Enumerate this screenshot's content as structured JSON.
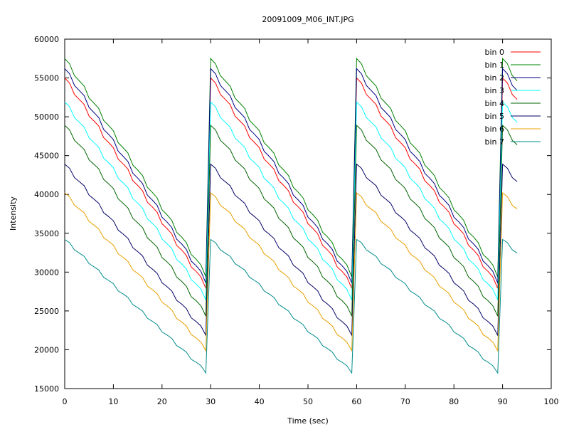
{
  "chart_data": {
    "type": "line",
    "title": "20091009_M06_INT.JPG",
    "xlabel": "Time (sec)",
    "ylabel": "Intensity",
    "xlim": [
      0,
      100
    ],
    "ylim": [
      15000,
      60000
    ],
    "xticks": [
      0,
      10,
      20,
      30,
      40,
      50,
      60,
      70,
      80,
      90,
      100
    ],
    "yticks": [
      15000,
      20000,
      25000,
      30000,
      35000,
      40000,
      45000,
      50000,
      55000,
      60000
    ],
    "grid": false,
    "legend_position": "top-right",
    "x_period": 30,
    "x_end": 93.2,
    "sample_step_sec": 1,
    "series": [
      {
        "name": "bin 0",
        "color": "#ff0000",
        "cycle_start": 55000,
        "cycle_end": 28200
      },
      {
        "name": "bin 1",
        "color": "#008000",
        "cycle_start": 57500,
        "cycle_end": 29700
      },
      {
        "name": "bin 2",
        "color": "#000080",
        "cycle_start": 56200,
        "cycle_end": 28900
      },
      {
        "name": "bin 3",
        "color": "#00ffff",
        "cycle_start": 51900,
        "cycle_end": 26700
      },
      {
        "name": "bin 4",
        "color": "#006400",
        "cycle_start": 48900,
        "cycle_end": 24600
      },
      {
        "name": "bin 5",
        "color": "#000066",
        "cycle_start": 43900,
        "cycle_end": 22100
      },
      {
        "name": "bin 6",
        "color": "#e8a000",
        "cycle_start": 40200,
        "cycle_end": 20100
      },
      {
        "name": "bin 7",
        "color": "#008b8b",
        "cycle_start": 34200,
        "cycle_end": 17200
      }
    ]
  }
}
